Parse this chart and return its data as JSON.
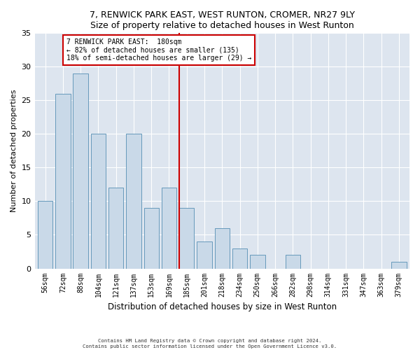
{
  "title": "7, RENWICK PARK EAST, WEST RUNTON, CROMER, NR27 9LY",
  "subtitle": "Size of property relative to detached houses in West Runton",
  "xlabel": "Distribution of detached houses by size in West Runton",
  "ylabel": "Number of detached properties",
  "categories": [
    "56sqm",
    "72sqm",
    "88sqm",
    "104sqm",
    "121sqm",
    "137sqm",
    "153sqm",
    "169sqm",
    "185sqm",
    "201sqm",
    "218sqm",
    "234sqm",
    "250sqm",
    "266sqm",
    "282sqm",
    "298sqm",
    "314sqm",
    "331sqm",
    "347sqm",
    "363sqm",
    "379sqm"
  ],
  "values": [
    10,
    26,
    29,
    20,
    12,
    20,
    9,
    12,
    9,
    4,
    6,
    3,
    2,
    0,
    2,
    0,
    0,
    0,
    0,
    0,
    1
  ],
  "bar_color": "#c9d9e8",
  "bar_edge_color": "#6699bb",
  "vline_index": 8,
  "vline_color": "#cc0000",
  "annotation_line1": "7 RENWICK PARK EAST:  180sqm",
  "annotation_line2": "← 82% of detached houses are smaller (135)",
  "annotation_line3": "18% of semi-detached houses are larger (29) →",
  "annotation_box_color": "#ffffff",
  "annotation_box_edge_color": "#cc0000",
  "ylim": [
    0,
    35
  ],
  "yticks": [
    0,
    5,
    10,
    15,
    20,
    25,
    30,
    35
  ],
  "background_color": "#dde5ef",
  "footer_line1": "Contains HM Land Registry data © Crown copyright and database right 2024.",
  "footer_line2": "Contains public sector information licensed under the Open Government Licence v3.0."
}
